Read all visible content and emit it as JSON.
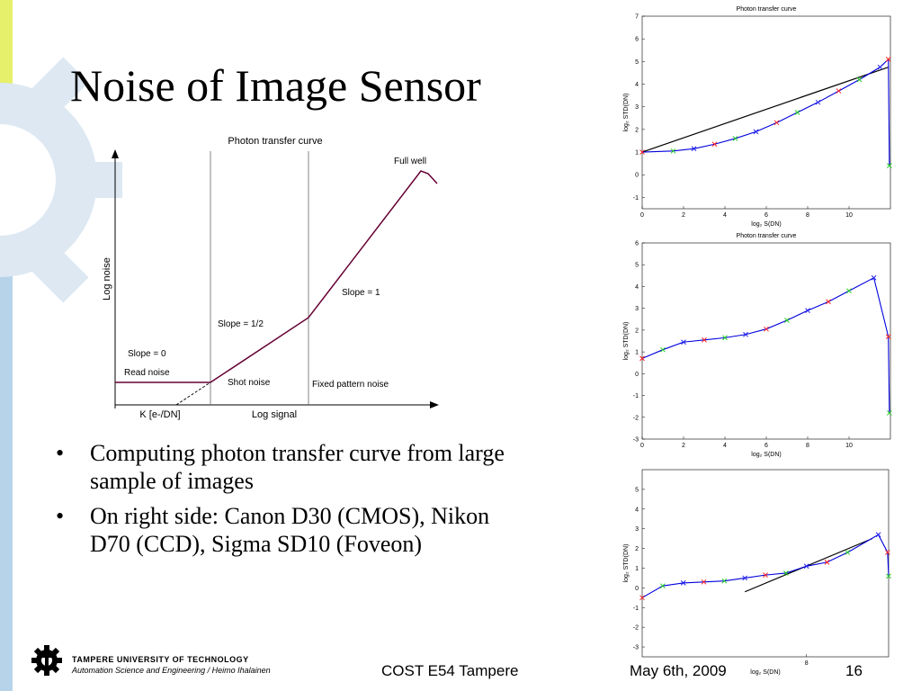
{
  "slide": {
    "title": "Noise of Image Sensor",
    "bullets": [
      "Computing photon transfer curve from large sample of images",
      "On right side: Canon D30 (CMOS), Nikon D70 (CCD), Sigma SD10 (Foveon)"
    ],
    "colors": {
      "bar_green": "#e6f06a",
      "bar_gray": "#c8c8c8",
      "bar_blue": "#b7d3ea",
      "gear": "#d6e2ee"
    }
  },
  "footer": {
    "university": "TAMPERE UNIVERSITY OF TECHNOLOGY",
    "department": "Automation Science and Engineering / Heimo Ihalainen",
    "event": "COST E54 Tampere",
    "date": "May 6th, 2009",
    "page": "16"
  },
  "chart_data": [
    {
      "type": "line",
      "title": "Photon transfer curve",
      "xlabel": "Log signal",
      "ylabel": "Log noise",
      "x_tick_label": "K [e-/DN]",
      "regions": [
        "Read noise",
        "Shot noise",
        "Fixed pattern noise"
      ],
      "annotations": [
        "Slope = 0",
        "Slope = 1/2",
        "Slope = 1",
        "Full well"
      ],
      "color": "#660033"
    },
    {
      "type": "line",
      "title": "Photon transfer curve",
      "xlabel": "log₂ S(DN)",
      "ylabel": "log₂ STD(DN)",
      "xlim": [
        0,
        12
      ],
      "ylim": [
        -1.5,
        7
      ],
      "xticks": [
        0,
        2,
        4,
        6,
        8,
        10
      ],
      "yticks": [
        -1,
        0,
        1,
        2,
        3,
        4,
        5,
        6,
        7
      ],
      "x": [
        0,
        1.5,
        2.5,
        3.5,
        4.5,
        5.5,
        6.5,
        7.5,
        8.5,
        9.5,
        10.5,
        11.5,
        11.9,
        11.95
      ],
      "y": [
        1.0,
        1.05,
        1.15,
        1.35,
        1.6,
        1.9,
        2.3,
        2.75,
        3.2,
        3.7,
        4.2,
        4.75,
        5.1,
        0.4
      ],
      "fit": {
        "x": [
          0,
          11.9
        ],
        "y": [
          1.0,
          4.75
        ]
      }
    },
    {
      "type": "line",
      "title": "Photon transfer curve",
      "xlabel": "log₂ S(DN)",
      "ylabel": "log₂ STD(DN)",
      "xlim": [
        0,
        12
      ],
      "ylim": [
        -3,
        6
      ],
      "xticks": [
        0,
        2,
        4,
        6,
        8,
        10
      ],
      "yticks": [
        -3,
        -2,
        -1,
        0,
        1,
        2,
        3,
        4,
        5,
        6
      ],
      "x": [
        0,
        1,
        2,
        3,
        4,
        5,
        6,
        7,
        8,
        9,
        10,
        11.2,
        11.9,
        11.95
      ],
      "y": [
        0.7,
        1.1,
        1.45,
        1.55,
        1.65,
        1.8,
        2.05,
        2.45,
        2.9,
        3.3,
        3.8,
        4.4,
        1.7,
        -1.8
      ]
    },
    {
      "type": "line",
      "title": "",
      "xlabel": "log₂ S(DN)",
      "ylabel": "log₂ STD(DN)",
      "xlim": [
        0,
        12
      ],
      "ylim": [
        -3.5,
        6
      ],
      "xticks": [
        8
      ],
      "yticks": [
        -3,
        -2,
        -1,
        0,
        1,
        2,
        3,
        4,
        5
      ],
      "x": [
        0,
        1,
        2,
        3,
        4,
        5,
        6,
        7,
        8,
        9,
        10,
        11.5,
        11.95,
        12
      ],
      "y": [
        -0.5,
        0.1,
        0.25,
        0.3,
        0.35,
        0.5,
        0.65,
        0.75,
        1.1,
        1.3,
        1.8,
        2.7,
        1.8,
        0.6
      ],
      "fit": {
        "x": [
          5,
          11.2
        ],
        "y": [
          -0.2,
          2.5
        ]
      }
    }
  ]
}
